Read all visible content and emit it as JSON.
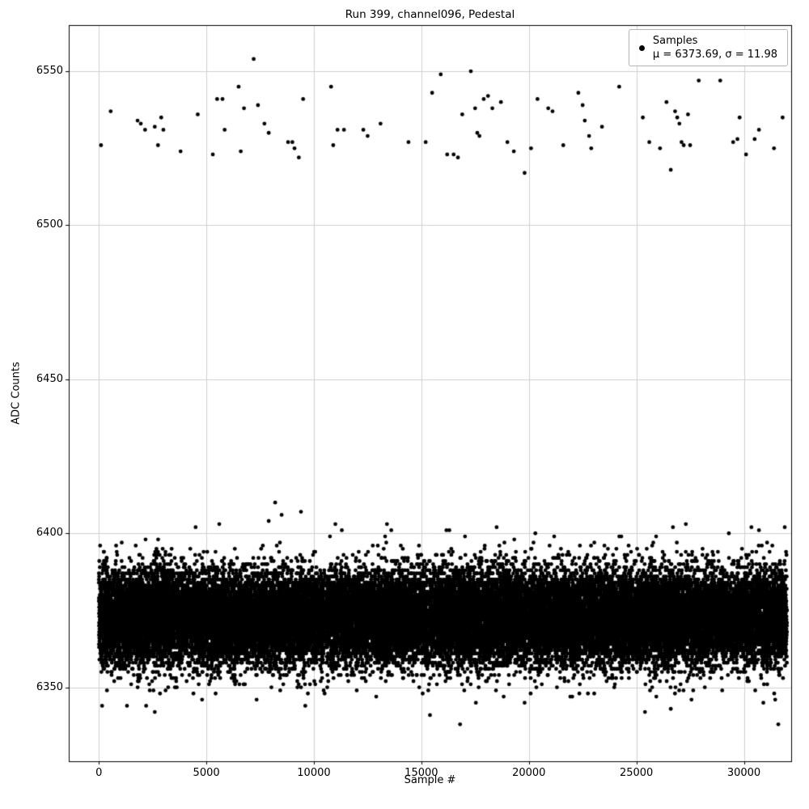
{
  "figure": {
    "title": "Run 399, channel096, Pedestal",
    "xlabel": "Sample #",
    "ylabel": "ADC Counts",
    "legend": {
      "marker": "black-dot",
      "line1": "Samples",
      "line2": "μ = 6373.69, σ = 11.98"
    },
    "background": "#ffffff",
    "marker_color": "#000000",
    "grid_color": "#d0d0d0",
    "spine_color": "#000000"
  },
  "chart_data": {
    "type": "scatter",
    "title": "Run 399, channel096, Pedestal",
    "xlabel": "Sample #",
    "ylabel": "ADC Counts",
    "legend_entries": [
      "Samples",
      "μ = 6373.69, σ = 11.98"
    ],
    "legend_position": "upper right",
    "grid": true,
    "xlim": [
      -1400,
      32200
    ],
    "ylim": [
      6326,
      6565
    ],
    "xticks": [
      0,
      5000,
      10000,
      15000,
      20000,
      25000,
      30000
    ],
    "yticks": [
      6350,
      6400,
      6450,
      6500,
      6550
    ],
    "stats": {
      "mu": 6373.69,
      "sigma": 11.98
    },
    "n_samples": 32000,
    "marker_radius_px": 2.4,
    "main_band": {
      "distribution": "gaussian-integer-adc",
      "n": 32000,
      "x_min": 0,
      "x_max": 32000,
      "mean": 6372.8,
      "sigma": 7.6,
      "approx_range": [
        6344,
        6403
      ]
    },
    "upper_outliers": [
      [
        100,
        6526
      ],
      [
        550,
        6537
      ],
      [
        1800,
        6534
      ],
      [
        1950,
        6533
      ],
      [
        2150,
        6531
      ],
      [
        2600,
        6532
      ],
      [
        2750,
        6526
      ],
      [
        2900,
        6535
      ],
      [
        3000,
        6531
      ],
      [
        3800,
        6524
      ],
      [
        4600,
        6536
      ],
      [
        5300,
        6523
      ],
      [
        5500,
        6541
      ],
      [
        5750,
        6541
      ],
      [
        5850,
        6531
      ],
      [
        6500,
        6545
      ],
      [
        6600,
        6524
      ],
      [
        6750,
        6538
      ],
      [
        7200,
        6554
      ],
      [
        7400,
        6539
      ],
      [
        7700,
        6533
      ],
      [
        7900,
        6530
      ],
      [
        8800,
        6527
      ],
      [
        9000,
        6527
      ],
      [
        9100,
        6525
      ],
      [
        9300,
        6522
      ],
      [
        9500,
        6541
      ],
      [
        10800,
        6545
      ],
      [
        10900,
        6526
      ],
      [
        11100,
        6531
      ],
      [
        11400,
        6531
      ],
      [
        12300,
        6531
      ],
      [
        12500,
        6529
      ],
      [
        13100,
        6533
      ],
      [
        14400,
        6527
      ],
      [
        15200,
        6527
      ],
      [
        15500,
        6543
      ],
      [
        15900,
        6549
      ],
      [
        16200,
        6523
      ],
      [
        16500,
        6523
      ],
      [
        16700,
        6522
      ],
      [
        16900,
        6536
      ],
      [
        17300,
        6550
      ],
      [
        17500,
        6538
      ],
      [
        17600,
        6530
      ],
      [
        17700,
        6529
      ],
      [
        17900,
        6541
      ],
      [
        18100,
        6542
      ],
      [
        18300,
        6538
      ],
      [
        18700,
        6540
      ],
      [
        19000,
        6527
      ],
      [
        19300,
        6524
      ],
      [
        19800,
        6517
      ],
      [
        20100,
        6525
      ],
      [
        20400,
        6541
      ],
      [
        20900,
        6538
      ],
      [
        21100,
        6537
      ],
      [
        21600,
        6526
      ],
      [
        22300,
        6543
      ],
      [
        22500,
        6539
      ],
      [
        22600,
        6534
      ],
      [
        22800,
        6529
      ],
      [
        22900,
        6525
      ],
      [
        23400,
        6532
      ],
      [
        24200,
        6545
      ],
      [
        25300,
        6535
      ],
      [
        25600,
        6527
      ],
      [
        26100,
        6525
      ],
      [
        26400,
        6540
      ],
      [
        26600,
        6518
      ],
      [
        26800,
        6537
      ],
      [
        26900,
        6535
      ],
      [
        27000,
        6533
      ],
      [
        27100,
        6527
      ],
      [
        27200,
        6526
      ],
      [
        27400,
        6536
      ],
      [
        27500,
        6526
      ],
      [
        27900,
        6547
      ],
      [
        28900,
        6547
      ],
      [
        29500,
        6527
      ],
      [
        29700,
        6528
      ],
      [
        29800,
        6535
      ],
      [
        30100,
        6523
      ],
      [
        30500,
        6528
      ],
      [
        30700,
        6531
      ],
      [
        31400,
        6525
      ],
      [
        31800,
        6535
      ]
    ],
    "band_edge_outliers": [
      [
        4500,
        6402
      ],
      [
        5600,
        6403
      ],
      [
        7900,
        6404
      ],
      [
        8200,
        6410
      ],
      [
        8500,
        6406
      ],
      [
        9400,
        6407
      ],
      [
        11000,
        6403
      ],
      [
        11300,
        6401
      ],
      [
        13400,
        6403
      ],
      [
        13600,
        6401
      ],
      [
        16300,
        6401
      ],
      [
        18500,
        6402
      ],
      [
        20300,
        6400
      ],
      [
        24300,
        6399
      ],
      [
        26700,
        6402
      ],
      [
        27300,
        6403
      ],
      [
        29300,
        6400
      ],
      [
        30700,
        6401
      ],
      [
        31900,
        6402
      ]
    ],
    "lower_outliers": [
      [
        150,
        6344
      ],
      [
        2600,
        6342
      ],
      [
        4800,
        6346
      ],
      [
        9600,
        6344
      ],
      [
        12900,
        6347
      ],
      [
        15400,
        6341
      ],
      [
        16800,
        6338
      ],
      [
        19800,
        6345
      ],
      [
        25400,
        6342
      ],
      [
        26600,
        6343
      ],
      [
        31600,
        6338
      ]
    ]
  }
}
